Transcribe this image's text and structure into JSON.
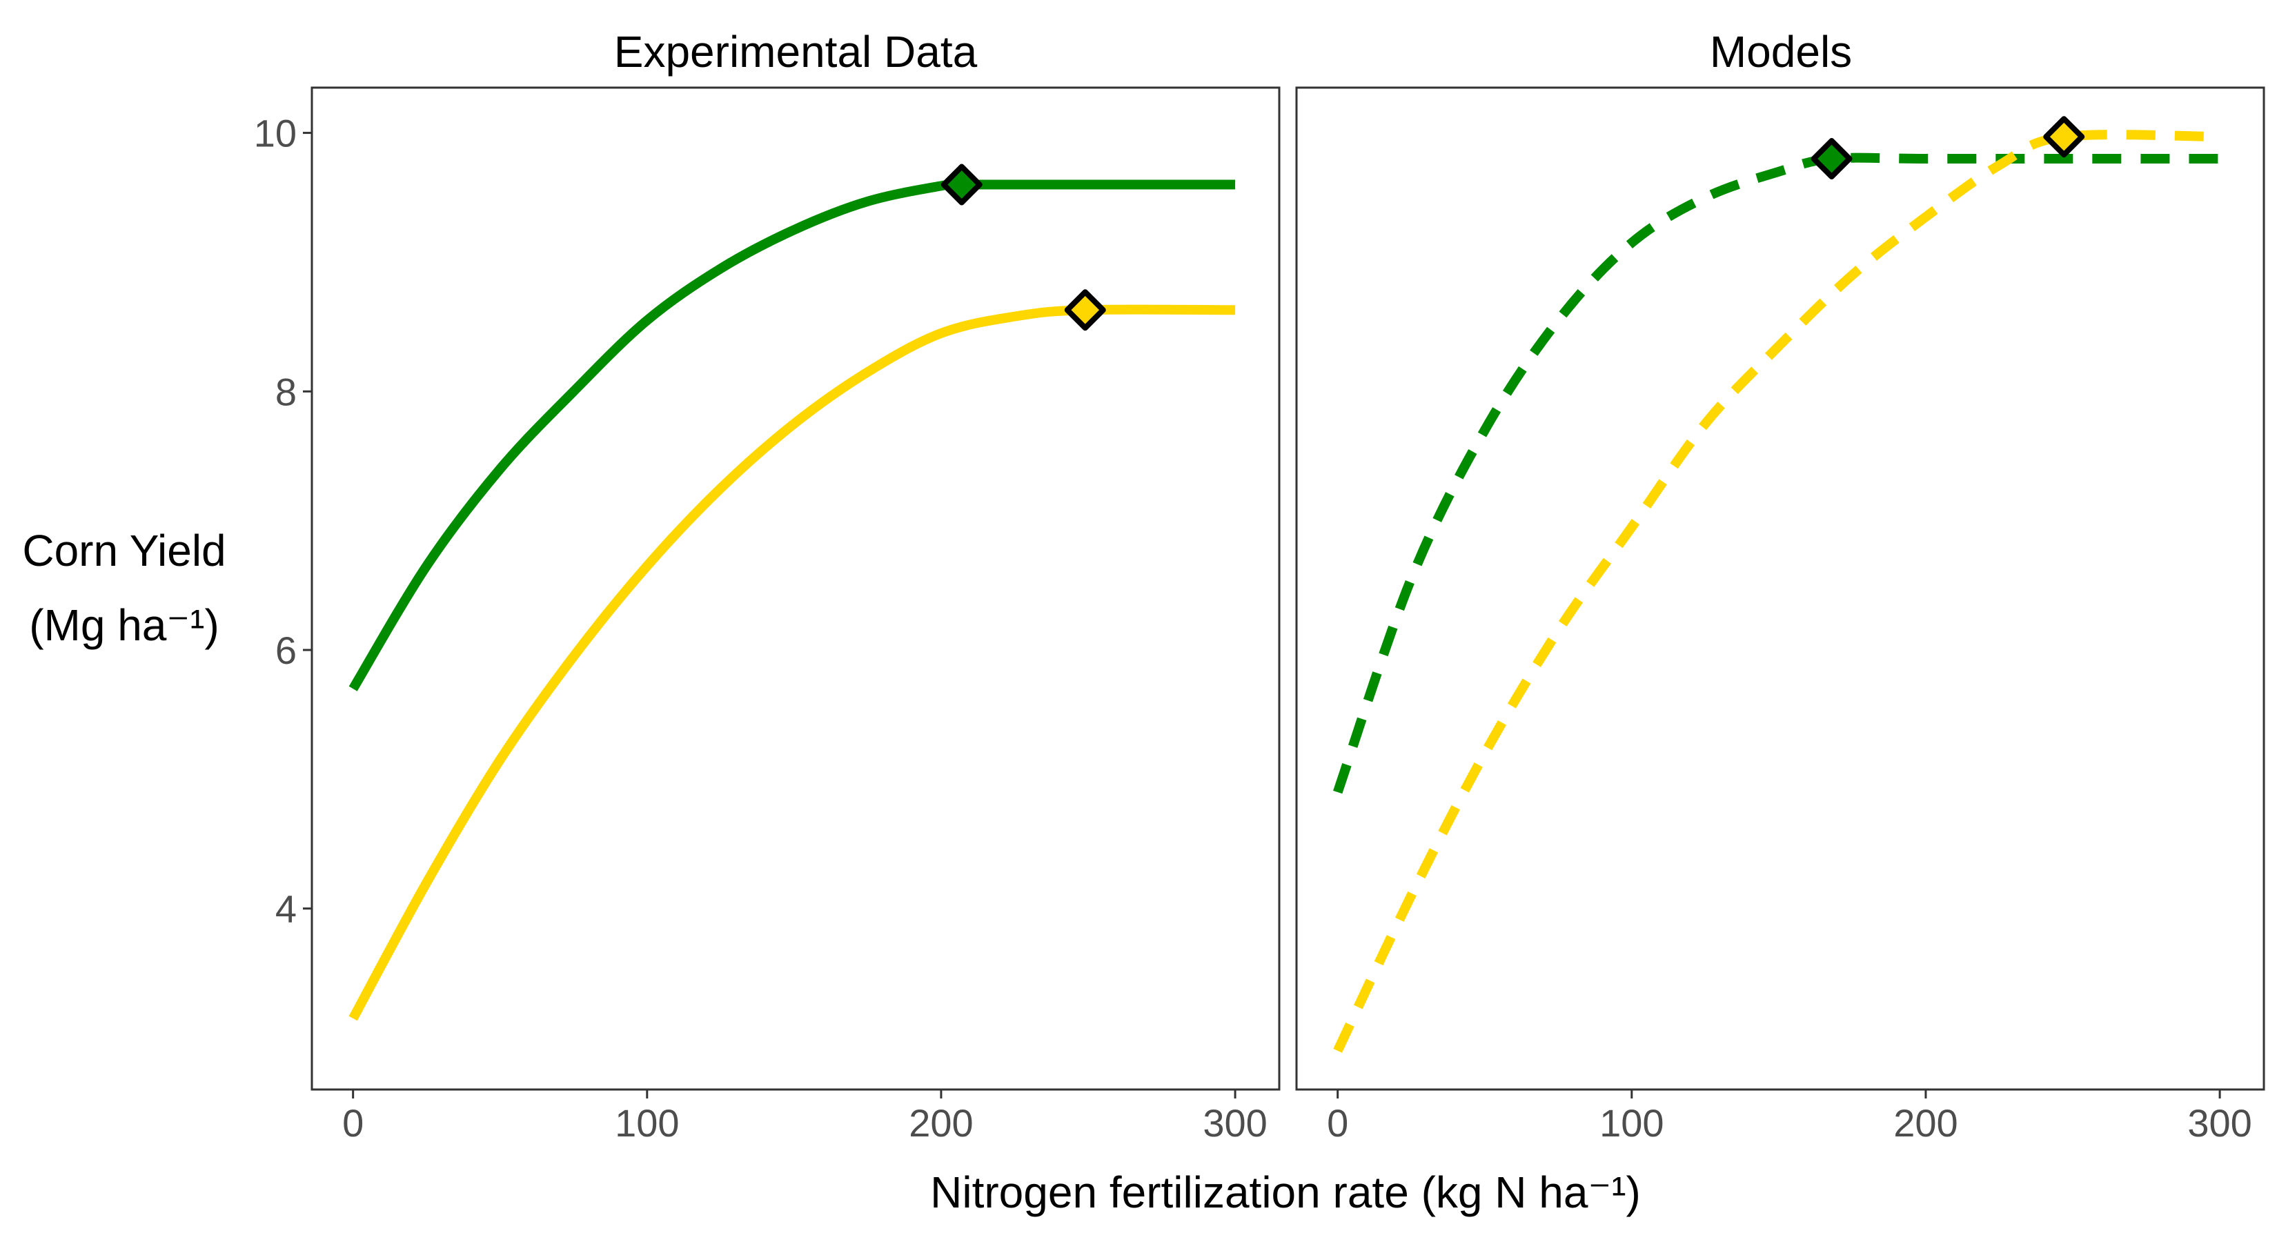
{
  "chart_data": {
    "type": "line",
    "panels": [
      {
        "title": "Experimental Data",
        "series": [
          {
            "color": "#008B00",
            "line_style": "solid",
            "x": [
              0,
              25,
              50,
              75,
              100,
              125,
              150,
              175,
              200,
              207,
              250,
              300
            ],
            "y": [
              5.7,
              6.65,
              7.4,
              8.0,
              8.55,
              8.95,
              9.25,
              9.47,
              9.59,
              9.6,
              9.6,
              9.6
            ],
            "marker": {
              "x": 207,
              "y": 9.6,
              "shape": "diamond"
            }
          },
          {
            "color": "#FFD700",
            "line_style": "solid",
            "x": [
              0,
              25,
              50,
              75,
              100,
              125,
              150,
              175,
              200,
              225,
              249,
              300
            ],
            "y": [
              3.15,
              4.2,
              5.15,
              5.95,
              6.65,
              7.25,
              7.75,
              8.15,
              8.45,
              8.58,
              8.63,
              8.63
            ],
            "marker": {
              "x": 249,
              "y": 8.63,
              "shape": "diamond"
            }
          }
        ]
      },
      {
        "title": "Models",
        "series": [
          {
            "color": "#008B00",
            "line_style": "dashed",
            "x": [
              0,
              25,
              50,
              75,
              100,
              125,
              150,
              168,
              200,
              250,
              300
            ],
            "y": [
              4.9,
              6.55,
              7.7,
              8.55,
              9.15,
              9.5,
              9.7,
              9.8,
              9.8,
              9.8,
              9.8
            ],
            "marker": {
              "x": 168,
              "y": 9.8,
              "shape": "diamond"
            }
          },
          {
            "color": "#FFD700",
            "line_style": "dashed",
            "x": [
              0,
              25,
              50,
              75,
              100,
              125,
              150,
              175,
              200,
              225,
              247,
              300
            ],
            "y": [
              2.9,
              4.1,
              5.2,
              6.15,
              6.95,
              7.75,
              8.35,
              8.9,
              9.35,
              9.75,
              9.97,
              9.97
            ],
            "marker": {
              "x": 247,
              "y": 9.97,
              "shape": "diamond"
            }
          }
        ]
      }
    ],
    "xlabel": "Nitrogen fertilization rate (kg N  ha⁻¹)",
    "ylabel_line1": "Corn Yield",
    "ylabel_line2": "(Mg  ha⁻¹)",
    "xlim": [
      -14,
      315
    ],
    "ylim": [
      2.6,
      10.35
    ],
    "xticks": [
      0,
      100,
      200,
      300
    ],
    "xtick_labels": [
      "0",
      "100",
      "200",
      "300"
    ],
    "yticks": [
      4,
      6,
      8,
      10
    ],
    "ytick_labels": [
      "4",
      "6",
      "8",
      "10"
    ],
    "grid": false,
    "legend": "none"
  }
}
